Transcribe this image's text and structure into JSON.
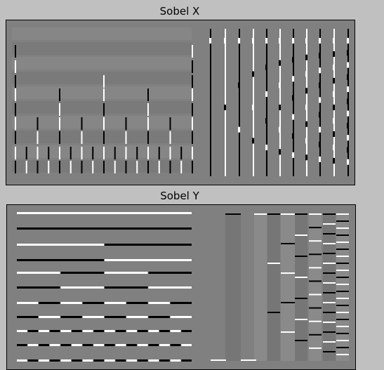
{
  "panels": [
    {
      "title": "Sobel X"
    },
    {
      "title": "Sobel Y"
    }
  ],
  "colors": {
    "background": "#c0c0c0",
    "plot_gray": "#808080",
    "positive_edge": "#ffffff",
    "negative_edge": "#000000",
    "frame": "#000000"
  }
}
